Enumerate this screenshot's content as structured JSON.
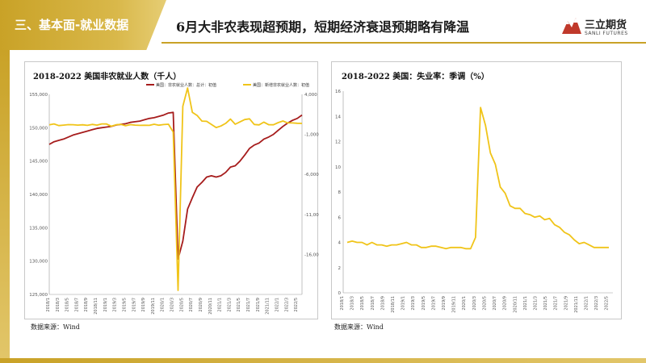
{
  "header": {
    "section_title": "三、基本面-就业数据",
    "main_title": "6月大非农表现超预期，短期经济衰退预期略有降温",
    "logo_name": "三立期货",
    "logo_sub": "SANLI FUTURES"
  },
  "colors": {
    "gold": "#c9a227",
    "payroll_line": "#a61c1c",
    "change_line": "#f0c419",
    "unemp_line": "#f0c419"
  },
  "left_panel": {
    "source": "数据来源：Wind"
  },
  "right_panel": {
    "source": "数据来源：Wind"
  },
  "chart_data": [
    {
      "type": "line",
      "title": "2018-2022 美国非农就业人数（千人）",
      "x": [
        "2018/1",
        "2018/3",
        "2018/5",
        "2018/7",
        "2018/9",
        "2018/11",
        "2019/1",
        "2019/3",
        "2019/5",
        "2019/7",
        "2019/9",
        "2019/11",
        "2020/1",
        "2020/3",
        "2020/5",
        "2020/7",
        "2020/9",
        "2020/11",
        "2021/1",
        "2021/3",
        "2021/5",
        "2021/7",
        "2021/9",
        "2021/11",
        "2022/1",
        "2022/3",
        "2022/5"
      ],
      "x_tick_labels": [
        "2018/1",
        "2018/3",
        "2018/5",
        "2018/7",
        "2018/9",
        "2018/11",
        "2019/1",
        "2019/3",
        "2019/5",
        "2019/7",
        "2019/9",
        "2019/11",
        "2020/1",
        "2020/3",
        "2020/5",
        "2020/7",
        "2020/9",
        "2020/11",
        "2021/1",
        "2021/3",
        "2021/5",
        "2021/7",
        "2021/9",
        "2021/11",
        "2022/1",
        "2022/3",
        "2022/5"
      ],
      "y_left": {
        "ticks": [
          125000,
          130000,
          135000,
          140000,
          145000,
          150000,
          155000
        ],
        "tick_labels": [
          "125,000",
          "130,000",
          "135,000",
          "140,000",
          "145,000",
          "150,000",
          "155,000"
        ],
        "lim": [
          125000,
          155000
        ]
      },
      "y_right": {
        "ticks": [
          -16000,
          -11000,
          -6000,
          -1000,
          4000
        ],
        "tick_labels": [
          "-16,000",
          "-11,000",
          "-6,000",
          "-1,000",
          "4,000"
        ],
        "lim": [
          -21000,
          4000
        ]
      },
      "series": [
        {
          "name": "美国：非农就业人数：总计：初值",
          "axis": "left",
          "color": "#a61c1c",
          "x": [
            "2018/1",
            "2018/2",
            "2018/3",
            "2018/4",
            "2018/5",
            "2018/6",
            "2018/7",
            "2018/8",
            "2018/9",
            "2018/10",
            "2018/11",
            "2018/12",
            "2019/1",
            "2019/2",
            "2019/3",
            "2019/4",
            "2019/5",
            "2019/6",
            "2019/7",
            "2019/8",
            "2019/9",
            "2019/10",
            "2019/11",
            "2019/12",
            "2020/1",
            "2020/2",
            "2020/3",
            "2020/4",
            "2020/5",
            "2020/6",
            "2020/7",
            "2020/8",
            "2020/9",
            "2020/10",
            "2020/11",
            "2020/12",
            "2021/1",
            "2021/2",
            "2021/3",
            "2021/4",
            "2021/5",
            "2021/6",
            "2021/7",
            "2021/8",
            "2021/9",
            "2021/10",
            "2021/11",
            "2021/12",
            "2022/1",
            "2022/2",
            "2022/3",
            "2022/4",
            "2022/5",
            "2022/6"
          ],
          "values": [
            147500,
            147900,
            148100,
            148300,
            148600,
            148900,
            149100,
            149300,
            149500,
            149700,
            149900,
            150000,
            150100,
            150200,
            150400,
            150500,
            150600,
            150800,
            150900,
            151000,
            151200,
            151400,
            151500,
            151700,
            151900,
            152200,
            152300,
            130300,
            133000,
            137800,
            139500,
            141100,
            141800,
            142600,
            142800,
            142600,
            142800,
            143300,
            144100,
            144300,
            145000,
            145900,
            146900,
            147400,
            147700,
            148300,
            148600,
            149000,
            149600,
            150200,
            150700,
            151100,
            151400,
            151900
          ]
        },
        {
          "name": "美国：新增非农就业人数：初值",
          "axis": "right",
          "color": "#f0c419",
          "x": [
            "2018/1",
            "2018/2",
            "2018/3",
            "2018/4",
            "2018/5",
            "2018/6",
            "2018/7",
            "2018/8",
            "2018/9",
            "2018/10",
            "2018/11",
            "2018/12",
            "2019/1",
            "2019/2",
            "2019/3",
            "2019/4",
            "2019/5",
            "2019/6",
            "2019/7",
            "2019/8",
            "2019/9",
            "2019/10",
            "2019/11",
            "2019/12",
            "2020/1",
            "2020/2",
            "2020/3",
            "2020/4",
            "2020/5",
            "2020/6",
            "2020/7",
            "2020/8",
            "2020/9",
            "2020/10",
            "2020/11",
            "2020/12",
            "2021/1",
            "2021/2",
            "2021/3",
            "2021/4",
            "2021/5",
            "2021/6",
            "2021/7",
            "2021/8",
            "2021/9",
            "2021/10",
            "2021/11",
            "2021/12",
            "2022/1",
            "2022/2",
            "2022/3",
            "2022/4",
            "2022/5",
            "2022/6"
          ],
          "values": [
            200,
            313,
            103,
            164,
            223,
            213,
            157,
            201,
            134,
            250,
            155,
            312,
            304,
            20,
            196,
            263,
            75,
            224,
            164,
            130,
            136,
            128,
            266,
            145,
            225,
            273,
            -701,
            -20500,
            2509,
            4800,
            1763,
            1371,
            661,
            638,
            245,
            -140,
            49,
            379,
            916,
            266,
            559,
            850,
            943,
            235,
            194,
            531,
            210,
            199,
            467,
            678,
            431,
            428,
            390,
            372
          ]
        }
      ],
      "legend": "top",
      "grid": false
    },
    {
      "type": "line",
      "title": "2018-2022 美国：失业率：季调（%）",
      "x_tick_labels": [
        "2018/1",
        "2018/3",
        "2018/5",
        "2018/7",
        "2018/9",
        "2018/11",
        "2019/1",
        "2019/3",
        "2019/5",
        "2019/7",
        "2019/9",
        "2019/11",
        "2020/1",
        "2020/3",
        "2020/5",
        "2020/7",
        "2020/9",
        "2020/11",
        "2021/1",
        "2021/3",
        "2021/5",
        "2021/7",
        "2021/9",
        "2021/11",
        "2022/1",
        "2022/3",
        "2022/5"
      ],
      "y": {
        "ticks": [
          0,
          2,
          4,
          6,
          8,
          10,
          12,
          14,
          16
        ],
        "tick_labels": [
          "0",
          "2",
          "4",
          "6",
          "8",
          "10",
          "12",
          "14",
          "16"
        ],
        "lim": [
          0,
          16
        ]
      },
      "series": [
        {
          "color": "#f0c419",
          "x": [
            "2018/1",
            "2018/2",
            "2018/3",
            "2018/4",
            "2018/5",
            "2018/6",
            "2018/7",
            "2018/8",
            "2018/9",
            "2018/10",
            "2018/11",
            "2018/12",
            "2019/1",
            "2019/2",
            "2019/3",
            "2019/4",
            "2019/5",
            "2019/6",
            "2019/7",
            "2019/8",
            "2019/9",
            "2019/10",
            "2019/11",
            "2019/12",
            "2020/1",
            "2020/2",
            "2020/3",
            "2020/4",
            "2020/5",
            "2020/6",
            "2020/7",
            "2020/8",
            "2020/9",
            "2020/10",
            "2020/11",
            "2020/12",
            "2021/1",
            "2021/2",
            "2021/3",
            "2021/4",
            "2021/5",
            "2021/6",
            "2021/7",
            "2021/8",
            "2021/9",
            "2021/10",
            "2021/11",
            "2021/12",
            "2022/1",
            "2022/2",
            "2022/3",
            "2022/4",
            "2022/5",
            "2022/6"
          ],
          "values": [
            4.0,
            4.1,
            4.0,
            4.0,
            3.8,
            4.0,
            3.8,
            3.8,
            3.7,
            3.8,
            3.8,
            3.9,
            4.0,
            3.8,
            3.8,
            3.6,
            3.6,
            3.7,
            3.7,
            3.6,
            3.5,
            3.6,
            3.6,
            3.6,
            3.5,
            3.5,
            4.4,
            14.7,
            13.3,
            11.1,
            10.2,
            8.4,
            7.9,
            6.9,
            6.7,
            6.7,
            6.3,
            6.2,
            6.0,
            6.1,
            5.8,
            5.9,
            5.4,
            5.2,
            4.8,
            4.6,
            4.2,
            3.9,
            4.0,
            3.8,
            3.6,
            3.6,
            3.6,
            3.6
          ]
        }
      ],
      "legend": "none",
      "grid": false
    }
  ]
}
